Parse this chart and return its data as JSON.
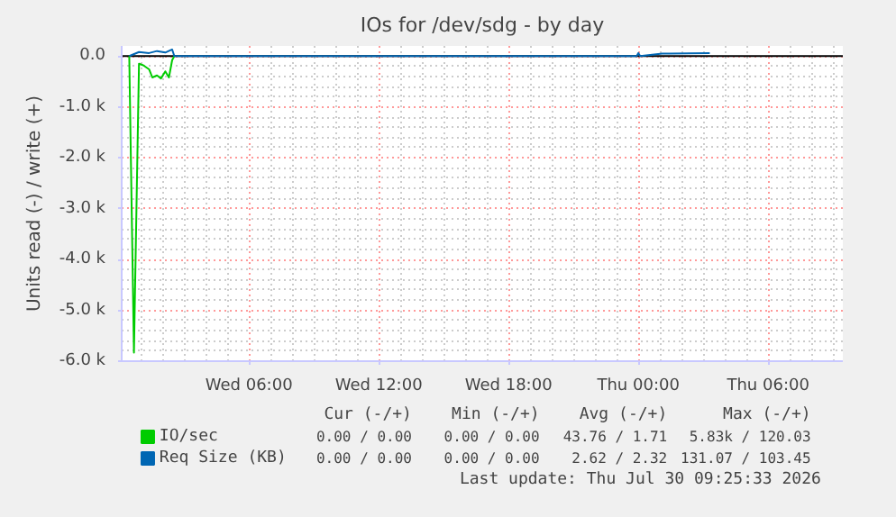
{
  "chart_data": {
    "type": "line",
    "title": "IOs for /dev/sdg - by day",
    "ylabel": "Units read (-) / write (+)",
    "xlim": [
      "2026-07-29T00:07",
      "2026-07-30T09:27"
    ],
    "xticks": [
      {
        "value": "2026-07-29T06:00",
        "label": "Wed 06:00"
      },
      {
        "value": "2026-07-29T12:00",
        "label": "Wed 12:00"
      },
      {
        "value": "2026-07-29T18:00",
        "label": "Wed 18:00"
      },
      {
        "value": "2026-07-30T00:00",
        "label": "Thu 00:00"
      },
      {
        "value": "2026-07-30T06:00",
        "label": "Thu 06:00"
      }
    ],
    "ylim": [
      -6000,
      200
    ],
    "yticks": [
      {
        "value": 0,
        "label": "0.0"
      },
      {
        "value": -1000,
        "label": "-1.0 k"
      },
      {
        "value": -2000,
        "label": "-2.0 k"
      },
      {
        "value": -3000,
        "label": "-3.0 k"
      },
      {
        "value": -4000,
        "label": "-4.0 k"
      },
      {
        "value": -5000,
        "label": "-5.0 k"
      },
      {
        "value": -6000,
        "label": "-6.0 k"
      }
    ],
    "grid": true,
    "legend": "bottom left",
    "series": [
      {
        "name": "IO/sec",
        "color": "#00cc00",
        "x": [
          "2026-07-29T00:28",
          "2026-07-29T00:41",
          "2026-07-29T00:55",
          "2026-07-29T01:07",
          "2026-07-29T01:23",
          "2026-07-29T01:32",
          "2026-07-29T01:45",
          "2026-07-29T01:56",
          "2026-07-29T02:08",
          "2026-07-29T02:18",
          "2026-07-29T02:27",
          "2026-07-29T02:33"
        ],
        "values": [
          0,
          -5830,
          -150,
          -180,
          -260,
          -420,
          -380,
          -440,
          -300,
          -420,
          -80,
          0
        ]
      },
      {
        "name": "Req Size (KB)",
        "color": "#0066b3",
        "x": [
          "2026-07-29T00:28",
          "2026-07-29T00:55",
          "2026-07-29T01:23",
          "2026-07-29T01:45",
          "2026-07-29T02:08",
          "2026-07-29T02:27",
          "2026-07-29T02:33",
          "2026-07-29T23:55",
          "2026-07-30T00:00",
          "2026-07-30T00:05",
          "2026-07-30T01:06",
          "2026-07-30T01:26",
          "2026-07-30T03:18"
        ],
        "values": [
          0,
          80,
          60,
          100,
          70,
          130,
          0,
          0,
          60,
          0,
          50,
          50,
          60
        ]
      }
    ],
    "annotations": [
      "Cur (-/+)",
      "Min (-/+)",
      "Avg (-/+)",
      "Max (-/+)",
      "0.00 / 0.00",
      "0.00 / 0.00",
      "43.76 / 1.71",
      "5.83k / 120.03",
      "0.00 / 0.00",
      "0.00 / 0.00",
      "2.62 / 2.32",
      "131.07 / 103.45",
      "Last update: Thu Jul 30 09:25:33 2026"
    ]
  }
}
